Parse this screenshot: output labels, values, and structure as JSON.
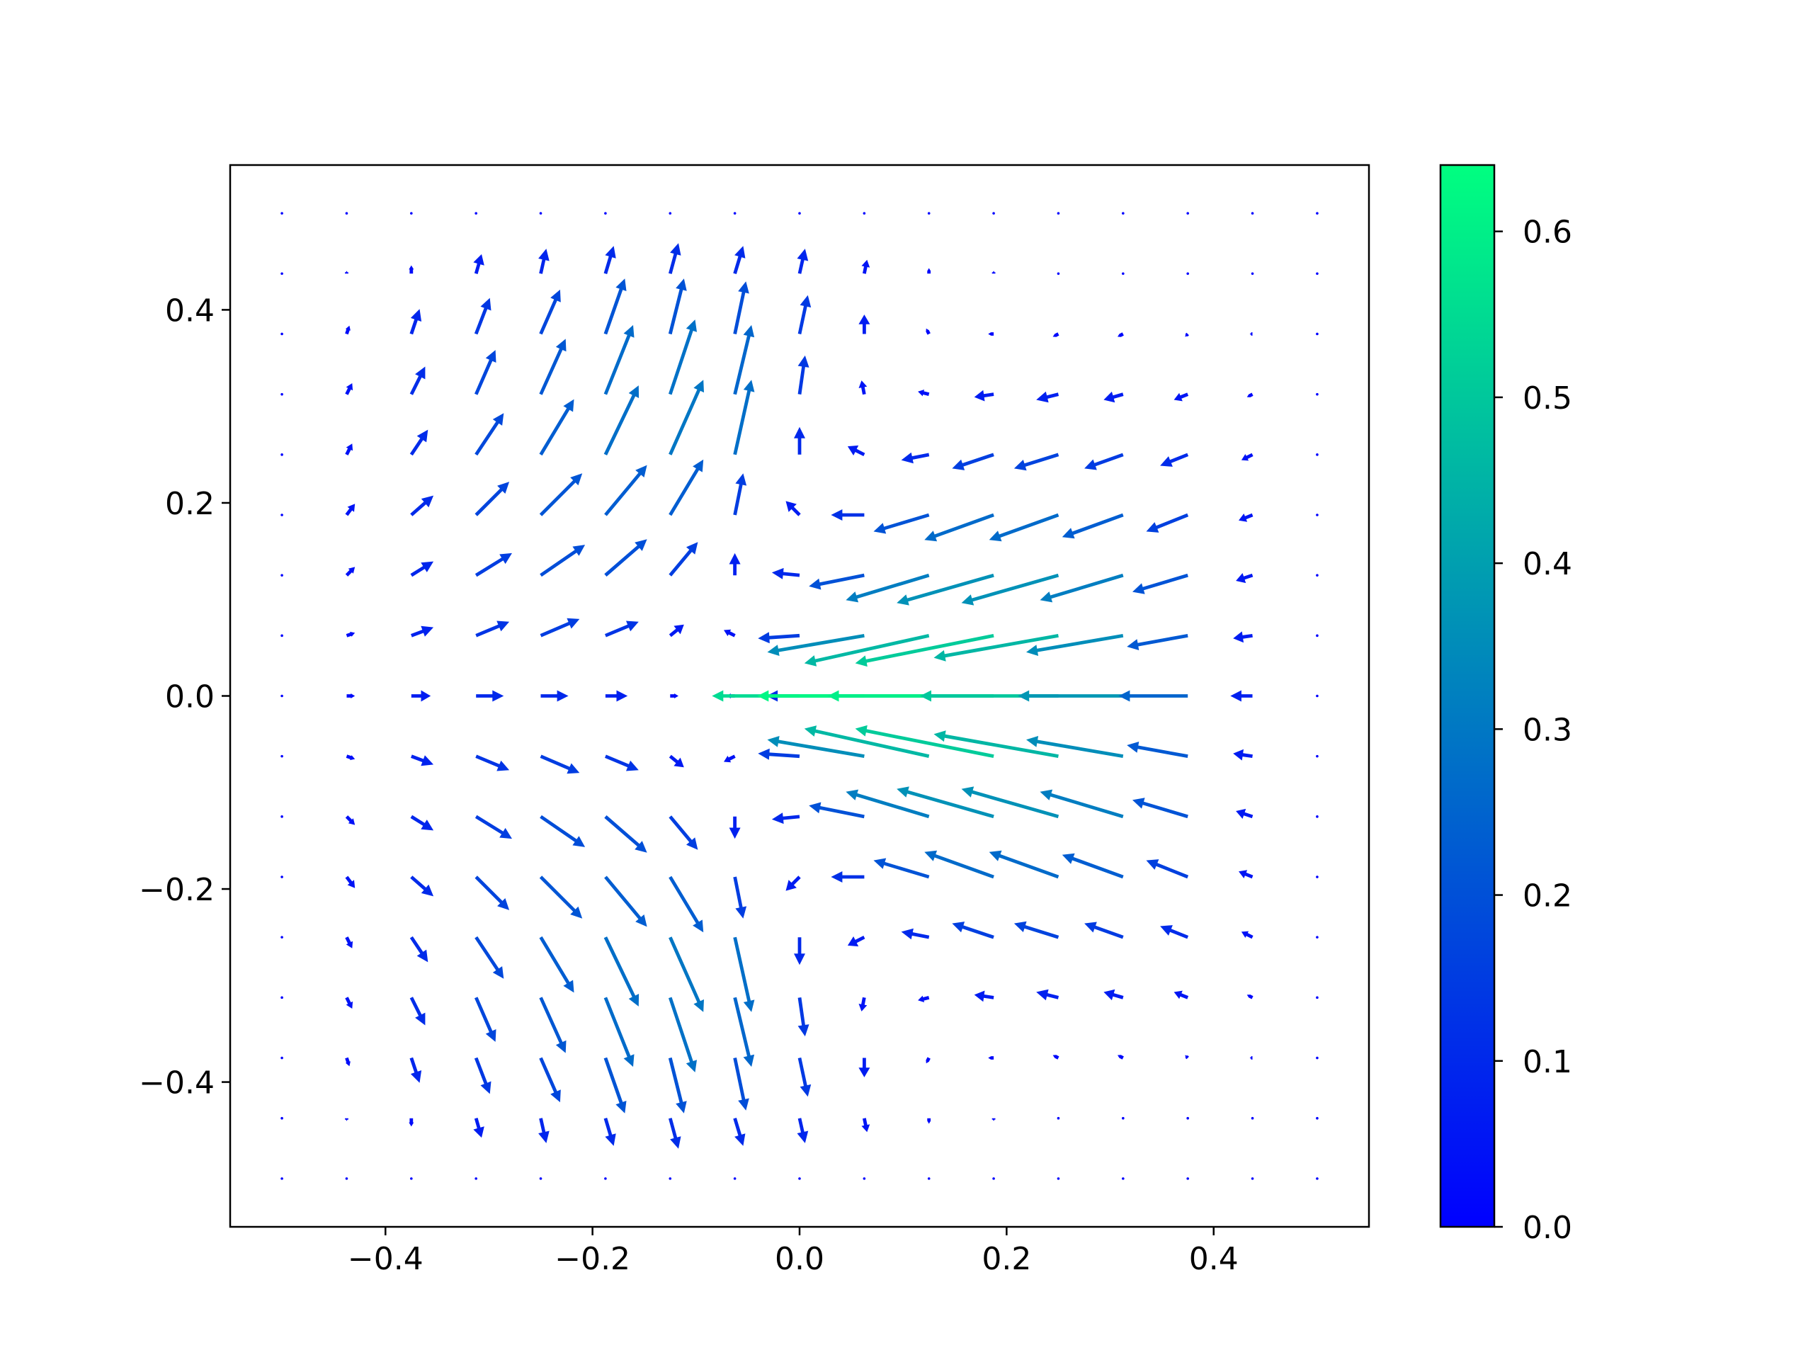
{
  "chart_data": {
    "type": "quiver",
    "x": [
      -0.5,
      -0.4375,
      -0.375,
      -0.3125,
      -0.25,
      -0.1875,
      -0.125,
      -0.0625,
      0,
      0.0625,
      0.125,
      0.1875,
      0.25,
      0.3125,
      0.375,
      0.4375,
      0.5
    ],
    "y": [
      0.5,
      0.4375,
      0.375,
      0.3125,
      0.25,
      0.1875,
      0.125,
      0.0625,
      0,
      -0.0625,
      -0.125,
      -0.1875,
      -0.25,
      -0.3125,
      -0.375,
      -0.4375,
      -0.5
    ],
    "u": [
      [
        0,
        0,
        0,
        0,
        0,
        0,
        0,
        0,
        0,
        0,
        0,
        0,
        0,
        0,
        0,
        0,
        0
      ],
      [
        0,
        0,
        0,
        0.02,
        0.02,
        0.03,
        0.03,
        0.03,
        0.02,
        0.01,
        0,
        0,
        0,
        0,
        0,
        0,
        0
      ],
      [
        0,
        0.01,
        0.03,
        0.05,
        0.07,
        0.07,
        0.05,
        0.04,
        0.03,
        0,
        -0.01,
        -0.02,
        -0.02,
        -0.02,
        -0.01,
        -0.01,
        0
      ],
      [
        0,
        0.02,
        0.05,
        0.07,
        0.09,
        0.1,
        0.09,
        0.06,
        0.02,
        -0.01,
        -0.04,
        -0.07,
        -0.08,
        -0.07,
        -0.05,
        -0.02,
        0
      ],
      [
        0,
        0.02,
        0.06,
        0.1,
        0.12,
        0.12,
        0.12,
        0.06,
        0,
        -0.06,
        -0.1,
        -0.15,
        -0.16,
        -0.14,
        -0.1,
        -0.04,
        0
      ],
      [
        0,
        0.03,
        0.08,
        0.12,
        0.15,
        0.15,
        0.12,
        0.03,
        -0.05,
        -0.12,
        -0.2,
        -0.25,
        -0.25,
        -0.22,
        -0.15,
        -0.05,
        0
      ],
      [
        0,
        0.03,
        0.08,
        0.13,
        0.16,
        0.15,
        0.1,
        0,
        -0.1,
        -0.2,
        -0.3,
        -0.35,
        -0.35,
        -0.3,
        -0.2,
        -0.06,
        0
      ],
      [
        0,
        0.03,
        0.08,
        0.12,
        0.14,
        0.12,
        0.05,
        -0.04,
        -0.15,
        -0.35,
        -0.45,
        -0.5,
        -0.45,
        -0.35,
        -0.22,
        -0.07,
        0
      ],
      [
        0,
        0.03,
        0.07,
        0.1,
        0.1,
        0.08,
        0.03,
        -0.03,
        -0.12,
        -0.55,
        -0.62,
        -0.6,
        -0.5,
        -0.38,
        -0.25,
        -0.08,
        0
      ],
      [
        0,
        0.03,
        0.08,
        0.12,
        0.14,
        0.12,
        0.05,
        -0.04,
        -0.15,
        -0.35,
        -0.45,
        -0.5,
        -0.45,
        -0.35,
        -0.22,
        -0.07,
        0
      ],
      [
        0,
        0.03,
        0.08,
        0.13,
        0.16,
        0.15,
        0.1,
        0,
        -0.1,
        -0.2,
        -0.3,
        -0.35,
        -0.35,
        -0.3,
        -0.2,
        -0.06,
        0
      ],
      [
        0,
        0.03,
        0.08,
        0.12,
        0.15,
        0.15,
        0.12,
        0.03,
        -0.05,
        -0.12,
        -0.2,
        -0.25,
        -0.25,
        -0.22,
        -0.15,
        -0.05,
        0
      ],
      [
        0,
        0.02,
        0.06,
        0.1,
        0.12,
        0.12,
        0.12,
        0.06,
        0,
        -0.06,
        -0.1,
        -0.15,
        -0.16,
        -0.14,
        -0.1,
        -0.04,
        0
      ],
      [
        0,
        0.02,
        0.05,
        0.07,
        0.09,
        0.1,
        0.09,
        0.06,
        0.02,
        -0.01,
        -0.04,
        -0.07,
        -0.08,
        -0.07,
        -0.05,
        -0.02,
        0
      ],
      [
        0,
        0.01,
        0.03,
        0.05,
        0.07,
        0.07,
        0.05,
        0.04,
        0.03,
        0,
        -0.01,
        -0.02,
        -0.02,
        -0.02,
        -0.01,
        -0.01,
        0
      ],
      [
        0,
        0,
        0,
        0.02,
        0.02,
        0.03,
        0.03,
        0.03,
        0.02,
        0.01,
        0,
        0,
        0,
        0,
        0,
        0,
        0
      ],
      [
        0,
        0,
        0,
        0,
        0,
        0,
        0,
        0,
        0,
        0,
        0,
        0,
        0,
        0,
        0,
        0,
        0
      ]
    ],
    "v": [
      [
        0,
        0,
        0,
        0,
        0,
        0,
        0,
        0,
        0,
        0,
        0,
        0,
        0,
        0,
        0,
        0,
        0
      ],
      [
        0,
        0.01,
        0.03,
        0.07,
        0.09,
        0.1,
        0.11,
        0.1,
        0.09,
        0.05,
        0.02,
        0.01,
        0,
        0,
        0,
        0,
        0
      ],
      [
        0,
        0.03,
        0.09,
        0.13,
        0.16,
        0.2,
        0.2,
        0.19,
        0.14,
        0.07,
        0.02,
        0,
        -0.01,
        -0.01,
        -0.01,
        0,
        0
      ],
      [
        0,
        0.04,
        0.1,
        0.16,
        0.2,
        0.25,
        0.27,
        0.25,
        0.14,
        0.05,
        0.01,
        -0.01,
        -0.02,
        -0.02,
        -0.02,
        -0.01,
        0
      ],
      [
        0,
        0.04,
        0.09,
        0.15,
        0.2,
        0.25,
        0.27,
        0.27,
        0.1,
        0.03,
        -0.02,
        -0.05,
        -0.05,
        -0.05,
        -0.04,
        -0.02,
        0
      ],
      [
        0,
        0.04,
        0.07,
        0.12,
        0.15,
        0.18,
        0.2,
        0.15,
        0.05,
        0,
        -0.06,
        -0.09,
        -0.09,
        -0.08,
        -0.06,
        -0.02,
        0
      ],
      [
        0,
        0.03,
        0.05,
        0.08,
        0.11,
        0.13,
        0.12,
        0.08,
        0.01,
        -0.04,
        -0.09,
        -0.1,
        -0.1,
        -0.09,
        -0.06,
        -0.02,
        0
      ],
      [
        0,
        0.01,
        0.03,
        0.05,
        0.06,
        0.05,
        0.04,
        0.02,
        -0.01,
        -0.06,
        -0.1,
        -0.1,
        -0.08,
        -0.06,
        -0.04,
        -0.01,
        0
      ],
      [
        0,
        0,
        0,
        0,
        0,
        0,
        0,
        0,
        0,
        0,
        0,
        0,
        0,
        0,
        0,
        0,
        0
      ],
      [
        0,
        -0.01,
        -0.03,
        -0.05,
        -0.06,
        -0.05,
        -0.04,
        -0.02,
        0.01,
        0.06,
        0.1,
        0.1,
        0.08,
        0.06,
        0.04,
        0.01,
        0
      ],
      [
        0,
        -0.03,
        -0.05,
        -0.08,
        -0.11,
        -0.13,
        -0.12,
        -0.08,
        -0.01,
        0.04,
        0.09,
        0.1,
        0.1,
        0.09,
        0.06,
        0.02,
        0
      ],
      [
        0,
        -0.04,
        -0.07,
        -0.12,
        -0.15,
        -0.18,
        -0.2,
        -0.15,
        -0.05,
        0,
        0.06,
        0.09,
        0.09,
        0.08,
        0.06,
        0.02,
        0
      ],
      [
        0,
        -0.04,
        -0.09,
        -0.15,
        -0.2,
        -0.25,
        -0.27,
        -0.27,
        -0.1,
        -0.03,
        0.02,
        0.05,
        0.05,
        0.05,
        0.04,
        0.02,
        0
      ],
      [
        0,
        -0.04,
        -0.1,
        -0.16,
        -0.2,
        -0.25,
        -0.27,
        -0.25,
        -0.14,
        -0.05,
        -0.01,
        0.01,
        0.02,
        0.02,
        0.02,
        0.01,
        0
      ],
      [
        0,
        -0.03,
        -0.09,
        -0.13,
        -0.16,
        -0.2,
        -0.2,
        -0.19,
        -0.14,
        -0.07,
        -0.02,
        0,
        0.01,
        0.01,
        0.01,
        0,
        0
      ],
      [
        0,
        -0.01,
        -0.03,
        -0.07,
        -0.09,
        -0.1,
        -0.11,
        -0.1,
        -0.09,
        -0.05,
        -0.02,
        -0.01,
        0,
        0,
        0,
        0,
        0
      ],
      [
        0,
        0,
        0,
        0,
        0,
        0,
        0,
        0,
        0,
        0,
        0,
        0,
        0,
        0,
        0,
        0,
        0
      ]
    ],
    "xlim": [
      -0.55,
      0.55
    ],
    "ylim": [
      -0.55,
      0.55
    ],
    "xticks": [
      {
        "value": -0.4,
        "label": "−0.4"
      },
      {
        "value": -0.2,
        "label": "−0.2"
      },
      {
        "value": 0,
        "label": "0.0"
      },
      0.2,
      0.4
    ],
    "yticks": [
      {
        "value": -0.4,
        "label": "−0.4"
      },
      {
        "value": -0.2,
        "label": "−0.2"
      },
      {
        "value": 0,
        "label": "0.0"
      },
      0.2,
      0.4
    ],
    "cmap": [
      "#0000ff",
      "#00ff80"
    ],
    "clim": [
      0,
      0.64
    ],
    "colorbar_ticks": [
      {
        "value": 0,
        "label": "0.0"
      },
      0.1,
      0.2,
      0.3,
      0.4,
      0.5,
      0.6
    ]
  }
}
